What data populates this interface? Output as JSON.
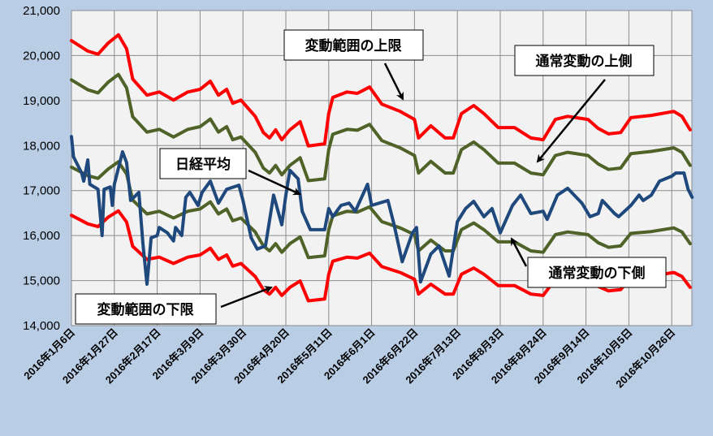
{
  "chart_data": {
    "type": "line",
    "title": "",
    "xlabel": "",
    "ylabel": "",
    "x_unit": "days since 2016-01-06",
    "ylim": [
      14000,
      21000
    ],
    "yticks": [
      14000,
      15000,
      16000,
      17000,
      18000,
      19000,
      20000,
      21000
    ],
    "ytick_labels": [
      "14,000",
      "15,000",
      "16,000",
      "17,000",
      "18,000",
      "19,000",
      "20,000",
      "21,000"
    ],
    "xtick_days": [
      0,
      21,
      42,
      63,
      84,
      105,
      126,
      147,
      168,
      189,
      210,
      231,
      252,
      273,
      294
    ],
    "xtick_labels": [
      "2016年1月6日",
      "2016年1月27日",
      "2016年2月17日",
      "2016年3月9日",
      "2016年3月30日",
      "2016年4月20日",
      "2016年5月11日",
      "2016年6月1日",
      "2016年6月22日",
      "2016年7月13日",
      "2016年8月3日",
      "2016年8月24日",
      "2016年9月14日",
      "2016年10月5日",
      "2016年10月26日"
    ],
    "xlim": [
      0,
      304
    ],
    "grid": true,
    "band_x": [
      0,
      8,
      13,
      18,
      23,
      27,
      30,
      37,
      43,
      50,
      57,
      63,
      68,
      72,
      76,
      79,
      83,
      90,
      94,
      97,
      100,
      103,
      107,
      112,
      116,
      124,
      126,
      128,
      135,
      140,
      146,
      152,
      161,
      168,
      170,
      176,
      183,
      187,
      191,
      197,
      202,
      209,
      217,
      225,
      231,
      237,
      243,
      253,
      258,
      263,
      269,
      274,
      284,
      295,
      299,
      303
    ],
    "series": [
      {
        "name": "変動範囲の上限",
        "color": "#ff0000",
        "x_key": "band_x",
        "values": [
          20330,
          20100,
          20030,
          20280,
          20460,
          20150,
          19480,
          19120,
          19190,
          19010,
          19190,
          19250,
          19430,
          19120,
          19250,
          18940,
          19010,
          18650,
          18290,
          18170,
          18350,
          18130,
          18350,
          18530,
          17990,
          18040,
          18710,
          19070,
          19190,
          19160,
          19300,
          18920,
          18760,
          18580,
          18170,
          18440,
          18170,
          18170,
          18710,
          18890,
          18710,
          18400,
          18400,
          18170,
          18130,
          18580,
          18650,
          18580,
          18380,
          18260,
          18290,
          18620,
          18670,
          18760,
          18650,
          18350
        ]
      },
      {
        "name": "通常変動の上側",
        "color": "#4f6228",
        "x_key": "band_x",
        "values": [
          19460,
          19240,
          19170,
          19410,
          19580,
          19280,
          18640,
          18300,
          18360,
          18190,
          18360,
          18420,
          18590,
          18300,
          18420,
          18130,
          18190,
          17850,
          17500,
          17390,
          17560,
          17350,
          17560,
          17730,
          17220,
          17260,
          17910,
          18250,
          18360,
          18340,
          18470,
          18110,
          17950,
          17780,
          17390,
          17650,
          17390,
          17390,
          17910,
          18080,
          17910,
          17610,
          17610,
          17390,
          17350,
          17780,
          17850,
          17780,
          17590,
          17470,
          17500,
          17820,
          17870,
          17950,
          17850,
          17560
        ]
      },
      {
        "name": "通常変動の下側",
        "color": "#4f6228",
        "x_key": "band_x",
        "values": [
          17520,
          17330,
          17270,
          17480,
          17640,
          17370,
          16790,
          16480,
          16540,
          16390,
          16540,
          16590,
          16750,
          16480,
          16590,
          16330,
          16390,
          16080,
          15770,
          15660,
          15820,
          15630,
          15820,
          15970,
          15510,
          15550,
          16130,
          16440,
          16540,
          16520,
          16640,
          16310,
          16170,
          16020,
          15660,
          15900,
          15660,
          15660,
          16130,
          16280,
          16130,
          15860,
          15860,
          15660,
          15630,
          16020,
          16080,
          16020,
          15840,
          15740,
          15770,
          16050,
          16090,
          16170,
          16080,
          15820
        ]
      },
      {
        "name": "変動範囲の下限",
        "color": "#ff0000",
        "x_key": "band_x",
        "values": [
          16450,
          16260,
          16200,
          16410,
          16550,
          16300,
          15760,
          15470,
          15520,
          15380,
          15520,
          15570,
          15720,
          15470,
          15570,
          15320,
          15380,
          15090,
          14800,
          14700,
          14850,
          14670,
          14850,
          14990,
          14550,
          14590,
          15140,
          15430,
          15520,
          15500,
          15610,
          15310,
          15180,
          15030,
          14700,
          14920,
          14700,
          14700,
          15140,
          15280,
          15140,
          14890,
          14890,
          14700,
          14670,
          15030,
          15090,
          15030,
          14870,
          14770,
          14800,
          15060,
          15100,
          15180,
          15090,
          14850
        ]
      },
      {
        "name": "日経平均",
        "color": "#1f497d",
        "x_key": "nikkei_x",
        "values": [
          18200,
          17750,
          17390,
          17210,
          17680,
          17140,
          17030,
          16000,
          17030,
          17080,
          16670,
          17140,
          17860,
          17620,
          16780,
          16960,
          15820,
          14920,
          15950,
          16000,
          16180,
          16060,
          15880,
          16180,
          16000,
          16850,
          16960,
          16670,
          16960,
          17210,
          16720,
          17030,
          17120,
          16780,
          15950,
          15700,
          15770,
          16900,
          16240,
          16900,
          17450,
          17260,
          16540,
          16130,
          16130,
          16600,
          16420,
          16670,
          16720,
          16540,
          17140,
          16670,
          16780,
          16240,
          15420,
          16060,
          16180,
          14970,
          15590,
          15770,
          15100,
          16310,
          16600,
          16760,
          16420,
          16600,
          16060,
          16670,
          16900,
          16490,
          16540,
          16360,
          16900,
          17050,
          16720,
          16420,
          16490,
          16780,
          16490,
          16420,
          16670,
          16900,
          16780,
          16900,
          17210,
          17320,
          17390,
          17390,
          17030,
          16850
        ]
      }
    ],
    "nikkei_x": [
      0,
      1,
      5,
      6,
      8,
      9,
      13,
      15,
      16,
      19,
      20,
      21,
      25,
      27,
      29,
      33,
      35,
      37,
      39,
      42,
      43,
      47,
      50,
      51,
      54,
      56,
      58,
      62,
      64,
      68,
      72,
      76,
      82,
      84,
      88,
      91,
      95,
      99,
      103,
      105,
      107,
      111,
      113,
      117,
      124,
      126,
      128,
      132,
      136,
      139,
      145,
      147,
      155,
      158,
      162,
      167,
      169,
      171,
      176,
      180,
      185,
      189,
      193,
      197,
      202,
      206,
      210,
      216,
      220,
      225,
      231,
      233,
      238,
      243,
      250,
      254,
      258,
      260,
      266,
      268,
      274,
      278,
      280,
      284,
      288,
      294,
      296,
      300,
      302,
      304
    ],
    "annotations": {
      "upper_limit": "変動範囲の上限",
      "upper_normal": "通常変動の上側",
      "nikkei": "日経平均",
      "lower_limit": "変動範囲の下限",
      "lower_normal": "通常変動の下側"
    }
  }
}
